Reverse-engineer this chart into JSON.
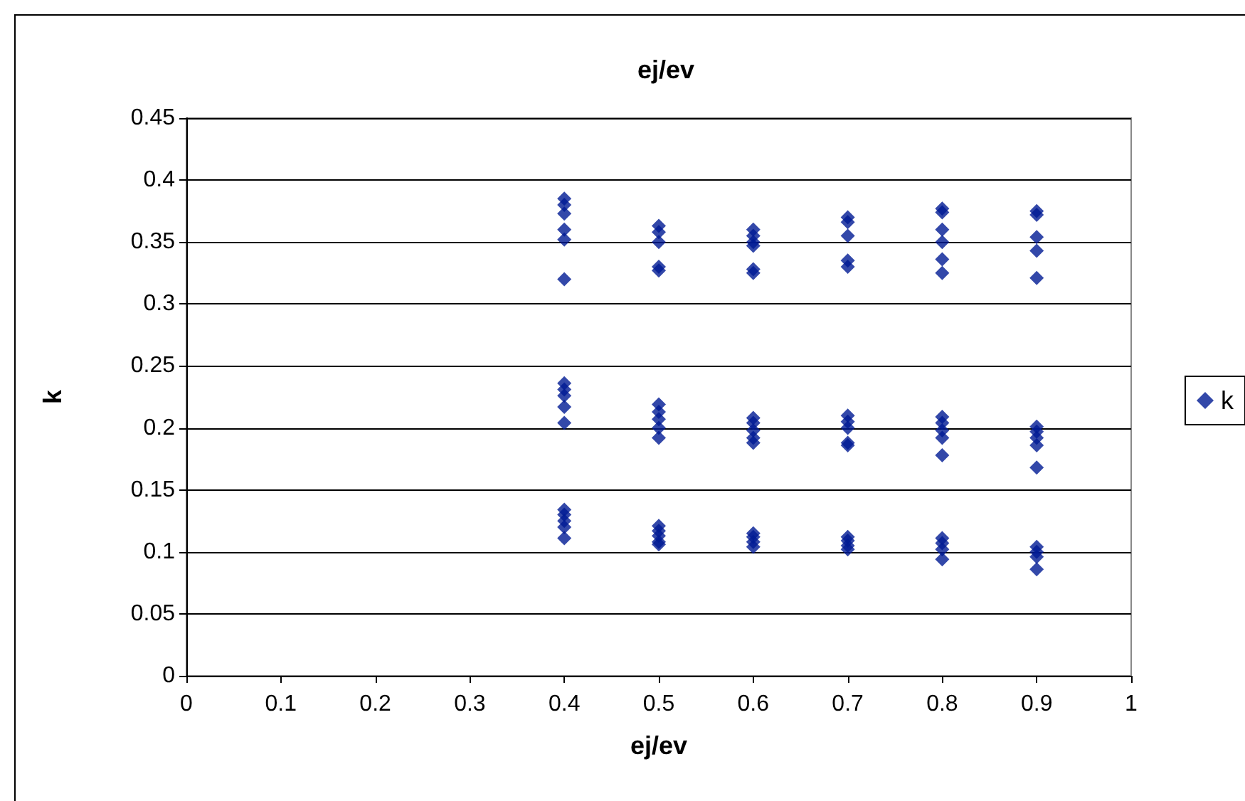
{
  "chart_data": {
    "type": "scatter",
    "title": "ej/ev",
    "xlabel": "ej/ev",
    "ylabel": "k",
    "x": [
      0.4,
      0.4,
      0.4,
      0.4,
      0.4,
      0.4,
      0.4,
      0.4,
      0.4,
      0.4,
      0.4,
      0.4,
      0.4,
      0.4,
      0.4,
      0.4,
      0.5,
      0.5,
      0.5,
      0.5,
      0.5,
      0.5,
      0.5,
      0.5,
      0.5,
      0.5,
      0.5,
      0.5,
      0.5,
      0.5,
      0.5,
      0.6,
      0.6,
      0.6,
      0.6,
      0.6,
      0.6,
      0.6,
      0.6,
      0.6,
      0.6,
      0.6,
      0.6,
      0.6,
      0.6,
      0.6,
      0.7,
      0.7,
      0.7,
      0.7,
      0.7,
      0.7,
      0.7,
      0.7,
      0.7,
      0.7,
      0.7,
      0.7,
      0.7,
      0.7,
      0.8,
      0.8,
      0.8,
      0.8,
      0.8,
      0.8,
      0.8,
      0.8,
      0.8,
      0.8,
      0.8,
      0.8,
      0.8,
      0.8,
      0.8,
      0.9,
      0.9,
      0.9,
      0.9,
      0.9,
      0.9,
      0.9,
      0.9,
      0.9,
      0.9,
      0.9,
      0.9,
      0.9,
      0.9
    ],
    "series": [
      {
        "name": "k",
        "color": "#001a94",
        "values": [
          0.385,
          0.38,
          0.373,
          0.36,
          0.352,
          0.32,
          0.236,
          0.231,
          0.226,
          0.217,
          0.204,
          0.134,
          0.13,
          0.125,
          0.12,
          0.111,
          0.363,
          0.358,
          0.35,
          0.33,
          0.327,
          0.219,
          0.213,
          0.207,
          0.2,
          0.192,
          0.121,
          0.117,
          0.113,
          0.108,
          0.106,
          0.36,
          0.355,
          0.35,
          0.347,
          0.328,
          0.325,
          0.208,
          0.204,
          0.198,
          0.192,
          0.188,
          0.115,
          0.112,
          0.108,
          0.104,
          0.37,
          0.366,
          0.355,
          0.335,
          0.33,
          0.21,
          0.205,
          0.2,
          0.188,
          0.186,
          0.112,
          0.109,
          0.105,
          0.102,
          0.377,
          0.374,
          0.36,
          0.35,
          0.336,
          0.325,
          0.209,
          0.204,
          0.198,
          0.192,
          0.178,
          0.111,
          0.107,
          0.102,
          0.094,
          0.375,
          0.372,
          0.354,
          0.343,
          0.321,
          0.201,
          0.197,
          0.192,
          0.186,
          0.168,
          0.104,
          0.1,
          0.096,
          0.086
        ]
      }
    ],
    "xlim": [
      0,
      1
    ],
    "xticks": [
      0,
      0.1,
      0.2,
      0.3,
      0.4,
      0.5,
      0.6,
      0.7,
      0.8,
      0.9,
      1
    ],
    "ylim": [
      0,
      0.45
    ],
    "yticks": [
      0,
      0.05,
      0.1,
      0.15,
      0.2,
      0.25,
      0.3,
      0.35,
      0.4,
      0.45
    ],
    "grid": "y",
    "legend": "right",
    "marker": "diamond"
  }
}
